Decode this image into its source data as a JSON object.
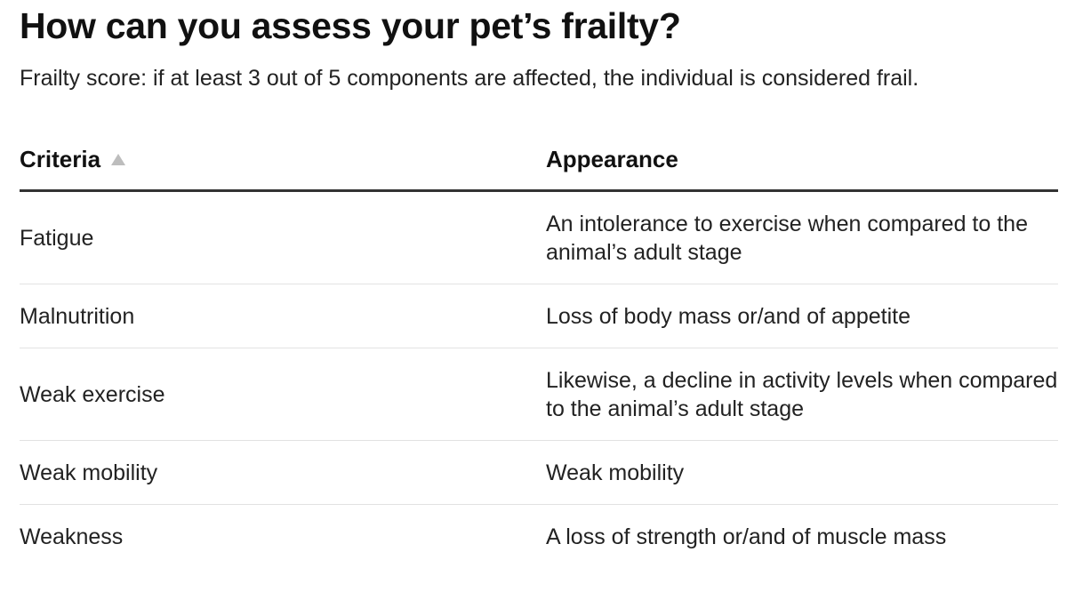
{
  "header": {
    "title": "How can you assess your pet’s frailty?",
    "subtitle": "Frailty score: if at least 3 out of 5 components are affected, the individual is considered frail."
  },
  "table": {
    "columns": [
      {
        "label": "Criteria",
        "sort": "ascending",
        "sort_icon": "sort-ascending-icon"
      },
      {
        "label": "Appearance"
      }
    ],
    "rows": [
      {
        "criteria": "Fatigue",
        "appearance": "An intolerance to exercise when compared to the animal’s adult stage"
      },
      {
        "criteria": "Malnutrition",
        "appearance": "Loss of body mass or/and of appetite"
      },
      {
        "criteria": "Weak exercise",
        "appearance": "Likewise, a decline in activity levels when compared to the animal’s adult stage"
      },
      {
        "criteria": "Weak mobility",
        "appearance": "Weak mobility"
      },
      {
        "criteria": "Weakness",
        "appearance": "A loss of strength or/and of muscle mass"
      }
    ]
  }
}
